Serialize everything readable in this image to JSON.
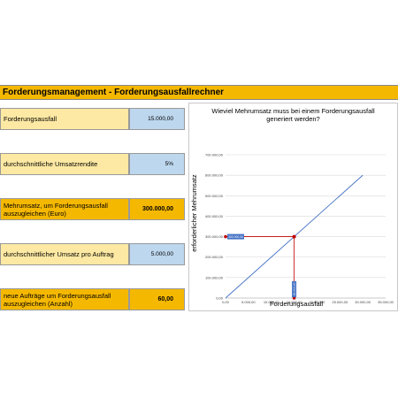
{
  "header": {
    "title": "Forderungsmanagement - Forderungsausfallrechner"
  },
  "inputs": [
    {
      "label": "Forderungsausfall",
      "value": "15.000,00"
    },
    {
      "label": "durchschnittliche Umsatzrendite",
      "value": "5%"
    },
    {
      "label": "durchschnittlicher Umsatz pro Auftrag",
      "value": "5.000,00"
    }
  ],
  "outputs": [
    {
      "label": "Mehrumsatz, um Forderungsausfall auszugleichen (Euro)",
      "value": "300.000,00"
    },
    {
      "label": "neue Aufträge um Forderungsausfall auszugleichen (Anzahl)",
      "value": "60,00"
    }
  ],
  "colors": {
    "header": "#f5b800",
    "input_label": "#fde9a3",
    "input_value": "#bdd7ee",
    "line": "#4472c4",
    "marker": "#c00000"
  },
  "chart_data": {
    "type": "line",
    "title_lines": [
      "Wieviel Mehrumsatz muss bei einem Forderungsausfall",
      "generiert werden?"
    ],
    "xlabel": "Forderungsausfall",
    "ylabel": "erforderlicher Mehrumsatz",
    "xlim": [
      0,
      35000
    ],
    "ylim": [
      0,
      700000
    ],
    "x_ticks": [
      0,
      5000,
      10000,
      15000,
      20000,
      25000,
      30000,
      35000
    ],
    "x_tick_labels": [
      "0,00",
      "5.000,00",
      "10.000,00",
      "15.000,00",
      "20.000,00",
      "25.000,00",
      "30.000,00",
      "35.000,00"
    ],
    "y_ticks": [
      0,
      100000,
      200000,
      300000,
      400000,
      500000,
      600000,
      700000
    ],
    "y_tick_labels": [
      "0,00",
      "100.000,00",
      "200.000,00",
      "300.000,00",
      "400.000,00",
      "500.000,00",
      "600.000,00",
      "700.000,00"
    ],
    "grid": true,
    "series": [
      {
        "x": [
          0,
          30000
        ],
        "y": [
          0,
          600000
        ]
      }
    ],
    "marker_point": {
      "x": 15000,
      "y": 300000
    },
    "marker_x_label": "15.000,00",
    "marker_y_label": "300.000,00"
  }
}
